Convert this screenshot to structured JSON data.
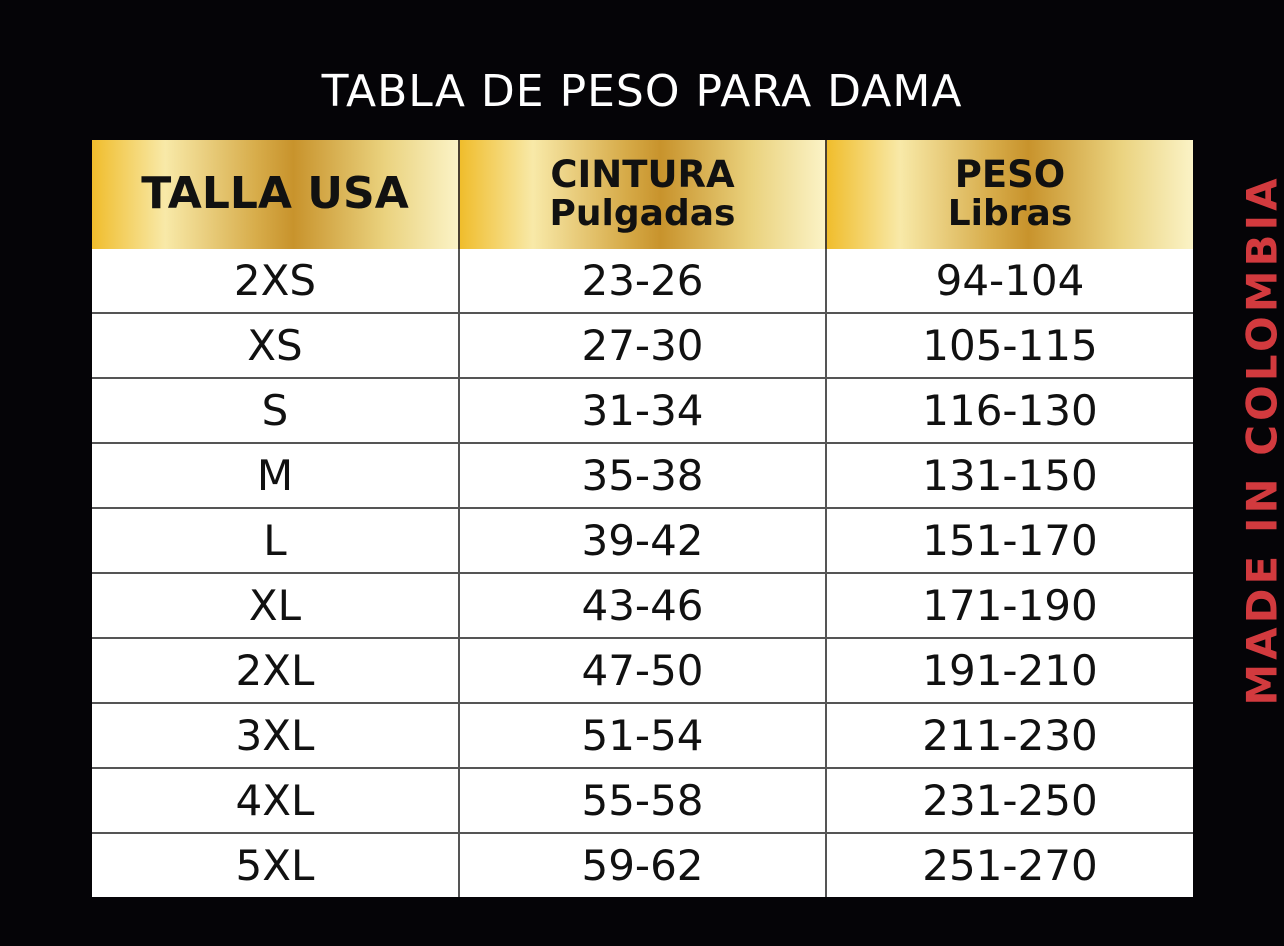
{
  "title": "TABLA DE PESO PARA DAMA",
  "side_text": "MADE IN COLOMBIA",
  "colors": {
    "background": "#050407",
    "header_gold": "#d7ac4a",
    "side_text": "#d23a3e"
  },
  "table": {
    "headers": [
      {
        "line1": "TALLA USA"
      },
      {
        "line1": "CINTURA",
        "line2": "Pulgadas"
      },
      {
        "line1": "PESO",
        "line2": "Libras"
      }
    ],
    "rows": [
      [
        "2XS",
        "23-26",
        "94-104"
      ],
      [
        "XS",
        "27-30",
        "105-115"
      ],
      [
        "S",
        "31-34",
        "116-130"
      ],
      [
        "M",
        "35-38",
        "131-150"
      ],
      [
        "L",
        "39-42",
        "151-170"
      ],
      [
        "XL",
        "43-46",
        "171-190"
      ],
      [
        "2XL",
        "47-50",
        "191-210"
      ],
      [
        "3XL",
        "51-54",
        "211-230"
      ],
      [
        "4XL",
        "55-58",
        "231-250"
      ],
      [
        "5XL",
        "59-62",
        "251-270"
      ]
    ]
  }
}
